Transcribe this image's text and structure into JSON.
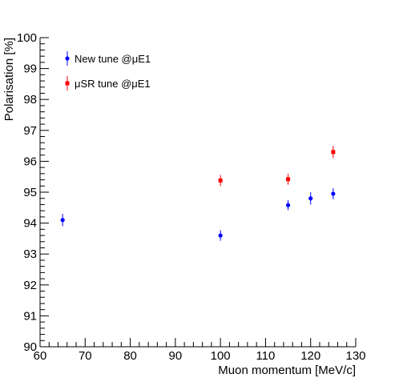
{
  "chart_data": {
    "type": "scatter",
    "xlabel": "Muon momentum [MeV/c]",
    "ylabel": "Polarisation [%]",
    "xlim": [
      60,
      130
    ],
    "ylim": [
      90,
      100
    ],
    "x_ticks": [
      60,
      70,
      80,
      90,
      100,
      110,
      120,
      130
    ],
    "y_ticks": [
      90,
      91,
      92,
      93,
      94,
      95,
      96,
      97,
      98,
      99,
      100
    ],
    "grid": false,
    "legend_position": "top-left",
    "series": [
      {
        "name": "New tune @μE1",
        "color": "#0000ff",
        "marker": "circle",
        "points": [
          {
            "x": 65,
            "y": 94.1,
            "err": 0.2
          },
          {
            "x": 100,
            "y": 93.6,
            "err": 0.17
          },
          {
            "x": 115,
            "y": 94.58,
            "err": 0.16
          },
          {
            "x": 120,
            "y": 94.8,
            "err": 0.2
          },
          {
            "x": 125,
            "y": 94.95,
            "err": 0.18
          }
        ]
      },
      {
        "name": "μSR tune @μE1",
        "color": "#ff0000",
        "marker": "square",
        "points": [
          {
            "x": 100,
            "y": 95.38,
            "err": 0.18
          },
          {
            "x": 115,
            "y": 95.42,
            "err": 0.18
          },
          {
            "x": 125,
            "y": 96.3,
            "err": 0.2
          }
        ]
      }
    ]
  }
}
